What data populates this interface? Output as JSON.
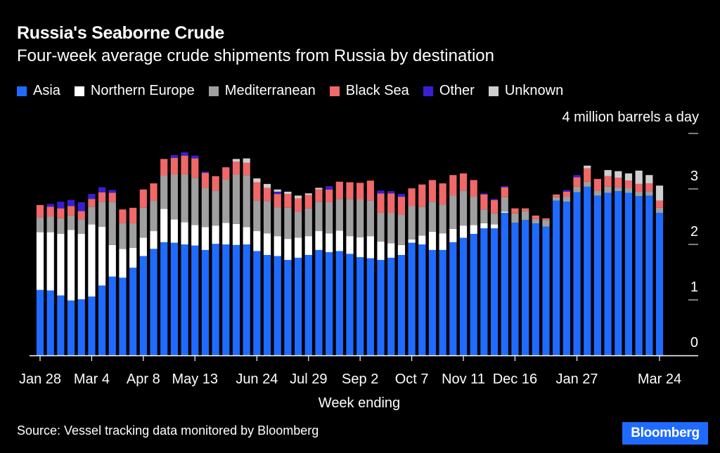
{
  "chart_data": {
    "type": "bar",
    "stacked": true,
    "title": "Russia's Seaborne Crude",
    "subtitle": "Four-week average crude shipments from Russia by destination",
    "ylabel": "4 million barrels a day",
    "xlabel": "Week ending",
    "source": "Source: Vessel tracking data monitored by Bloomberg",
    "ylim": [
      0,
      4
    ],
    "y_ticks": [
      "0",
      "1",
      "2",
      "3",
      "4 million barrels a day"
    ],
    "x_tick_labels": [
      {
        "index": 0,
        "label": "Jan 28"
      },
      {
        "index": 5,
        "label": "Mar 4"
      },
      {
        "index": 10,
        "label": "Apr 8"
      },
      {
        "index": 15,
        "label": "May 13"
      },
      {
        "index": 21,
        "label": "Jun 24"
      },
      {
        "index": 26,
        "label": "Jul 29"
      },
      {
        "index": 31,
        "label": "Sep 2"
      },
      {
        "index": 36,
        "label": "Oct 7"
      },
      {
        "index": 41,
        "label": "Nov 11"
      },
      {
        "index": 46,
        "label": "Dec 16"
      },
      {
        "index": 52,
        "label": "Jan 27"
      },
      {
        "index": 60,
        "label": "Mar 24"
      }
    ],
    "legend_position": "top-left",
    "series": [
      {
        "name": "Asia",
        "color": "#1f6bff",
        "values": [
          1.18,
          1.17,
          1.08,
          0.99,
          1.01,
          1.06,
          1.26,
          1.42,
          1.4,
          1.58,
          1.79,
          1.92,
          2.04,
          2.03,
          2.0,
          1.98,
          1.9,
          2.01,
          2.0,
          1.99,
          2.0,
          1.88,
          1.81,
          1.79,
          1.72,
          1.76,
          1.81,
          1.9,
          1.86,
          1.88,
          1.83,
          1.77,
          1.75,
          1.72,
          1.76,
          1.81,
          2.03,
          2.0,
          1.9,
          1.9,
          2.04,
          2.12,
          2.19,
          2.29,
          2.29,
          2.57,
          2.39,
          2.44,
          2.38,
          2.32,
          2.79,
          2.77,
          2.94,
          3.04,
          2.88,
          2.93,
          2.96,
          2.93,
          2.87,
          2.88,
          2.57
        ]
      },
      {
        "name": "Northern Europe",
        "color": "#ffffff",
        "values": [
          1.04,
          1.05,
          1.11,
          1.27,
          1.18,
          1.3,
          1.06,
          0.57,
          0.52,
          0.36,
          0.33,
          0.32,
          0.6,
          0.42,
          0.4,
          0.37,
          0.41,
          0.33,
          0.39,
          0.38,
          0.31,
          0.36,
          0.39,
          0.36,
          0.38,
          0.36,
          0.34,
          0.34,
          0.34,
          0.37,
          0.32,
          0.36,
          0.4,
          0.33,
          0.26,
          0.18,
          0.06,
          0.16,
          0.33,
          0.3,
          0.24,
          0.22,
          0.16,
          0.09,
          0.07,
          0.02,
          0,
          0,
          0,
          0,
          0,
          0,
          0,
          0,
          0,
          0,
          0,
          0,
          0,
          0,
          0
        ]
      },
      {
        "name": "Mediterranean",
        "color": "#a0a0a0",
        "values": [
          0.27,
          0.28,
          0.28,
          0.26,
          0.26,
          0.32,
          0.45,
          0.78,
          0.46,
          0.44,
          0.54,
          0.55,
          0.6,
          0.81,
          0.86,
          0.85,
          0.71,
          0.63,
          0.78,
          0.89,
          0.94,
          0.55,
          0.58,
          0.52,
          0.56,
          0.47,
          0.5,
          0.53,
          0.56,
          0.57,
          0.67,
          0.68,
          0.64,
          0.52,
          0.55,
          0.55,
          0.6,
          0.52,
          0.54,
          0.52,
          0.6,
          0.63,
          0.51,
          0.25,
          0.2,
          0.26,
          0.17,
          0.16,
          0.08,
          0.12,
          0.06,
          0.09,
          0.1,
          0.09,
          0.09,
          0.11,
          0.07,
          0.09,
          0.08,
          0.08,
          0.09
        ]
      },
      {
        "name": "Black Sea",
        "color": "#f06868",
        "values": [
          0.22,
          0.18,
          0.18,
          0.17,
          0.15,
          0.14,
          0.17,
          0.16,
          0.25,
          0.28,
          0.33,
          0.31,
          0.3,
          0.3,
          0.34,
          0.35,
          0.27,
          0.26,
          0.22,
          0.23,
          0.22,
          0.33,
          0.24,
          0.24,
          0.25,
          0.24,
          0.24,
          0.22,
          0.23,
          0.31,
          0.3,
          0.3,
          0.36,
          0.35,
          0.35,
          0.32,
          0.32,
          0.4,
          0.39,
          0.38,
          0.37,
          0.31,
          0.3,
          0.27,
          0.24,
          0.18,
          0.09,
          0.05,
          0.06,
          0.03,
          0.05,
          0.09,
          0.17,
          0.24,
          0.21,
          0.19,
          0.17,
          0.13,
          0.14,
          0.14,
          0.13
        ]
      },
      {
        "name": "Other",
        "color": "#3a1ed6",
        "values": [
          0,
          0.05,
          0.12,
          0.11,
          0.16,
          0.09,
          0.09,
          0.05,
          0,
          0,
          0,
          0,
          0,
          0.05,
          0.06,
          0.05,
          0.02,
          0,
          0,
          0,
          0,
          0,
          0,
          0.04,
          0,
          0,
          0,
          0,
          0.06,
          0,
          0,
          0,
          0,
          0.05,
          0.04,
          0.05,
          0,
          0,
          0,
          0,
          0,
          0,
          0,
          0.02,
          0.02,
          0.02,
          0,
          0,
          0,
          0,
          0,
          0.03,
          0.04,
          0,
          0,
          0,
          0,
          0,
          0,
          0,
          0
        ]
      },
      {
        "name": "Unknown",
        "color": "#cfcfcf",
        "values": [
          0,
          0,
          0,
          0,
          0,
          0,
          0,
          0,
          0,
          0,
          0,
          0,
          0,
          0,
          0,
          0,
          0,
          0,
          0,
          0.05,
          0.08,
          0.07,
          0.07,
          0.04,
          0.04,
          0.05,
          0.03,
          0.03,
          0,
          0,
          0,
          0,
          0,
          0,
          0,
          0,
          0,
          0,
          0,
          0,
          0,
          0,
          0,
          0,
          0,
          0,
          0,
          0,
          0,
          0,
          0,
          0,
          0,
          0.05,
          0,
          0.11,
          0.12,
          0.13,
          0.24,
          0.15,
          0.27
        ]
      }
    ]
  }
}
